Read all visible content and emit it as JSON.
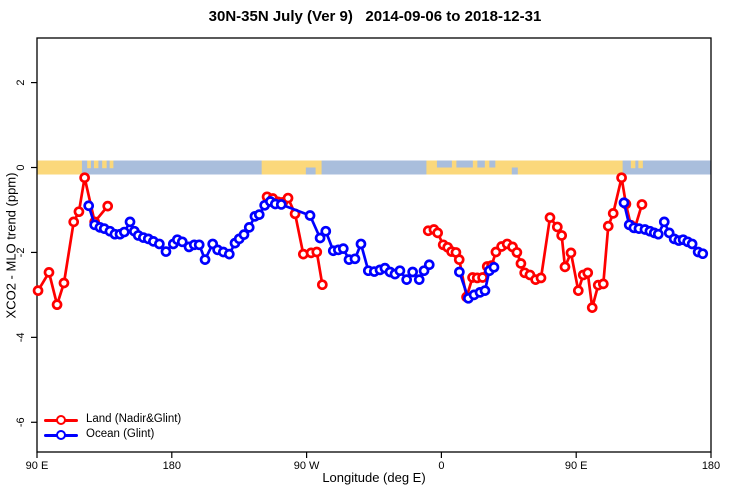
{
  "title": "30N-35N July (Ver 9)   2014-09-06 to 2018-12-31",
  "chart_data": {
    "type": "line",
    "title": "30N-35N July (Ver 9)   2014-09-06 to 2018-12-31",
    "xlabel": "Longitude (deg E)",
    "ylabel": "XCO2 - MLO trend (ppm)",
    "x_axis": {
      "note": "longitude axis wraps eastward: 90E -> 180 -> 90W -> 0 -> 90E -> 180; stored as unwrapped deg 90..540",
      "range_deg": [
        90,
        540
      ],
      "ticks_deg": [
        90,
        180,
        270,
        360,
        450,
        540
      ],
      "tick_labels": [
        "90 E",
        "180",
        "90 W",
        "0",
        "90 E",
        "180"
      ]
    },
    "y_axis": {
      "range": [
        -6.7,
        3.05
      ],
      "ticks": [
        2,
        0,
        -2,
        -4,
        -6
      ],
      "unit": "ppm"
    },
    "zero_line_strip": {
      "description": "world land/ocean map band for 30N-35N drawn along y=0",
      "y_value": 0,
      "ocean_color": "#a9bedc",
      "land_color": "#fbd87b",
      "land_segments_deg": [
        [
          90,
          120
        ],
        [
          240,
          280
        ],
        [
          350,
          481
        ]
      ],
      "island_patches_deg": [
        [
          123.5,
          126
        ],
        [
          128,
          131
        ],
        [
          133.5,
          136.5
        ],
        [
          138.5,
          141
        ],
        [
          486.5,
          489.5
        ],
        [
          491.5,
          494.5
        ]
      ],
      "ocean_cutouts_top_deg": [
        [
          357,
          367
        ],
        [
          370,
          381
        ],
        [
          384,
          389
        ],
        [
          392,
          396
        ]
      ],
      "ocean_cutouts_bottom_deg": [
        [
          269.5,
          276
        ],
        [
          407,
          411
        ]
      ]
    },
    "series": [
      {
        "name": "Land (Nadir&Glint)",
        "color": "#ff0000",
        "segments": [
          [
            [
              90.7,
              -2.9
            ],
            [
              98,
              -2.47
            ],
            [
              103.4,
              -3.23
            ],
            [
              108,
              -2.72
            ],
            [
              114.5,
              -1.28
            ],
            [
              118,
              -1.04
            ],
            [
              121.8,
              -0.24
            ],
            [
              128.5,
              -1.28
            ],
            [
              137.2,
              -0.91
            ]
          ],
          [
            [
              243.6,
              -0.69
            ],
            [
              247.4,
              -0.73
            ],
            [
              250.9,
              -0.81
            ],
            [
              254.1,
              -0.82
            ],
            [
              257.6,
              -0.72
            ],
            [
              262.3,
              -1.09
            ],
            [
              267.8,
              -2.04
            ],
            [
              273,
              -2.01
            ],
            [
              276.8,
              -1.99
            ],
            [
              280.5,
              -2.76
            ]
          ],
          [
            [
              351.2,
              -1.49
            ],
            [
              355,
              -1.46
            ],
            [
              357.5,
              -1.54
            ],
            [
              361.2,
              -1.82
            ],
            [
              364.2,
              -1.88
            ],
            [
              366.8,
              -1.98
            ],
            [
              369.7,
              -2.0
            ],
            [
              371.9,
              -2.17
            ],
            [
              376.8,
              -3.05
            ],
            [
              380.8,
              -2.59
            ],
            [
              383.9,
              -2.6
            ],
            [
              387.5,
              -2.59
            ],
            [
              390.6,
              -2.33
            ],
            [
              393.5,
              -2.31
            ],
            [
              396.4,
              -1.99
            ],
            [
              400.2,
              -1.86
            ],
            [
              403.9,
              -1.8
            ],
            [
              407.5,
              -1.87
            ],
            [
              410.4,
              -2.0
            ],
            [
              413.1,
              -2.26
            ],
            [
              415.6,
              -2.48
            ],
            [
              419.1,
              -2.53
            ],
            [
              422.9,
              -2.64
            ],
            [
              426.5,
              -2.6
            ],
            [
              432.5,
              -1.18
            ],
            [
              437.4,
              -1.4
            ],
            [
              440.3,
              -1.6
            ],
            [
              442.5,
              -2.34
            ],
            [
              446.5,
              -2.01
            ],
            [
              451.4,
              -2.9
            ],
            [
              454.7,
              -2.53
            ],
            [
              457.7,
              -2.48
            ],
            [
              460.7,
              -3.3
            ],
            [
              464.7,
              -2.77
            ],
            [
              468.1,
              -2.74
            ],
            [
              471.4,
              -1.38
            ],
            [
              474.7,
              -1.08
            ],
            [
              480.3,
              -0.24
            ],
            [
              483.2,
              -0.86
            ],
            [
              486.5,
              -1.36
            ],
            [
              489.2,
              -1.42
            ],
            [
              493.9,
              -0.87
            ]
          ]
        ]
      },
      {
        "name": "Ocean (Glint)",
        "color": "#0000ff",
        "segments": [
          [
            [
              124.5,
              -0.9
            ],
            [
              128.5,
              -1.35
            ],
            [
              132,
              -1.41
            ],
            [
              134.9,
              -1.44
            ],
            [
              138.7,
              -1.5
            ],
            [
              142,
              -1.57
            ],
            [
              145.4,
              -1.57
            ],
            [
              148.3,
              -1.52
            ],
            [
              152.1,
              -1.28
            ],
            [
              155,
              -1.5
            ],
            [
              157.6,
              -1.6
            ],
            [
              161,
              -1.65
            ],
            [
              164.3,
              -1.68
            ],
            [
              167.7,
              -1.74
            ],
            [
              171.7,
              -1.8
            ],
            [
              176.1,
              -1.98
            ],
            [
              181,
              -1.8
            ],
            [
              183.7,
              -1.7
            ],
            [
              187,
              -1.75
            ],
            [
              191.5,
              -1.87
            ],
            [
              195,
              -1.82
            ],
            [
              198.3,
              -1.82
            ],
            [
              202.2,
              -2.17
            ],
            [
              207.3,
              -1.8
            ],
            [
              210.6,
              -1.94
            ],
            [
              214.4,
              -1.99
            ],
            [
              218.4,
              -2.04
            ],
            [
              222.2,
              -1.78
            ],
            [
              225,
              -1.68
            ],
            [
              228.2,
              -1.58
            ],
            [
              231.7,
              -1.41
            ],
            [
              235.5,
              -1.15
            ],
            [
              238.4,
              -1.11
            ],
            [
              242,
              -0.89
            ],
            [
              245.8,
              -0.8
            ],
            [
              249.1,
              -0.86
            ],
            [
              253.1,
              -0.87
            ],
            [
              272.3,
              -1.13
            ],
            [
              279,
              -1.66
            ],
            [
              282.8,
              -1.5
            ],
            [
              287.8,
              -1.96
            ],
            [
              291.2,
              -1.94
            ],
            [
              294.5,
              -1.91
            ],
            [
              298.3,
              -2.17
            ],
            [
              302.3,
              -2.15
            ],
            [
              306.3,
              -1.8
            ],
            [
              311.2,
              -2.43
            ],
            [
              315.2,
              -2.45
            ],
            [
              319,
              -2.41
            ],
            [
              322.3,
              -2.37
            ],
            [
              325.7,
              -2.46
            ],
            [
              329,
              -2.51
            ],
            [
              332.3,
              -2.43
            ],
            [
              336.8,
              -2.64
            ],
            [
              340.8,
              -2.46
            ],
            [
              345.2,
              -2.64
            ],
            [
              348.4,
              -2.43
            ],
            [
              351.9,
              -2.29
            ]
          ],
          [
            [
              372,
              -2.46
            ],
            [
              378,
              -3.08
            ],
            [
              381.8,
              -3.0
            ],
            [
              385.8,
              -2.94
            ],
            [
              389.1,
              -2.9
            ],
            [
              392,
              -2.43
            ],
            [
              395.1,
              -2.35
            ]
          ],
          [
            [
              481.9,
              -0.83
            ],
            [
              485.4,
              -1.35
            ],
            [
              488.5,
              -1.42
            ],
            [
              491.9,
              -1.44
            ],
            [
              495.9,
              -1.46
            ],
            [
              499.2,
              -1.5
            ],
            [
              502.1,
              -1.54
            ],
            [
              504.8,
              -1.57
            ],
            [
              508.8,
              -1.28
            ],
            [
              512.1,
              -1.54
            ],
            [
              515.4,
              -1.68
            ],
            [
              518.5,
              -1.72
            ],
            [
              521.4,
              -1.7
            ],
            [
              524.4,
              -1.75
            ],
            [
              527.4,
              -1.8
            ],
            [
              531.4,
              -1.99
            ],
            [
              534.5,
              -2.03
            ]
          ]
        ]
      }
    ],
    "legend_position": "bottom-left"
  },
  "legend": {
    "items": [
      {
        "label": "Land (Nadir&Glint)",
        "color": "#ff0000"
      },
      {
        "label": "Ocean (Glint)",
        "color": "#0000ff"
      }
    ]
  }
}
